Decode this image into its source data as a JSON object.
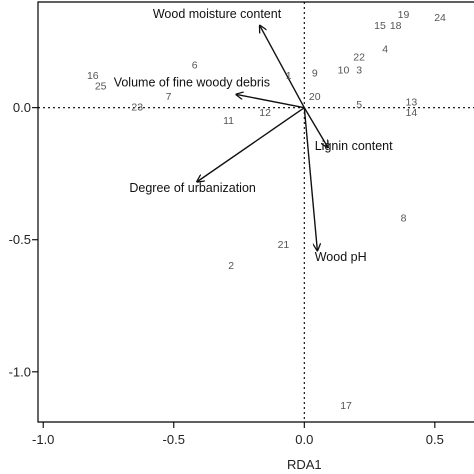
{
  "chart_data": {
    "type": "scatter",
    "subtype": "rda-biplot",
    "title": "",
    "xlabel": "RDA1",
    "ylabel": "",
    "xlim": [
      -1.02,
      0.65
    ],
    "ylim": [
      -1.19,
      0.4
    ],
    "x_ticks": [
      {
        "value": -1.0,
        "label": "-1.0"
      },
      {
        "value": -0.5,
        "label": "-0.5"
      },
      {
        "value": 0.0,
        "label": "0.0"
      },
      {
        "value": 0.5,
        "label": "0.5"
      }
    ],
    "y_ticks": [
      {
        "value": 0.0,
        "label": "0.0"
      },
      {
        "value": -0.5,
        "label": "-0.5"
      },
      {
        "value": -1.0,
        "label": "-1.0"
      }
    ],
    "reference_lines": {
      "x": 0,
      "y": 0,
      "style": "dotted"
    },
    "grid": false,
    "sites": [
      {
        "label": "1",
        "x": -0.06,
        "y": 0.12
      },
      {
        "label": "2",
        "x": -0.28,
        "y": -0.6
      },
      {
        "label": "3",
        "x": 0.21,
        "y": 0.14
      },
      {
        "label": "4",
        "x": 0.31,
        "y": 0.22
      },
      {
        "label": "5",
        "x": 0.21,
        "y": 0.01
      },
      {
        "label": "6",
        "x": -0.42,
        "y": 0.16
      },
      {
        "label": "7",
        "x": -0.52,
        "y": 0.04
      },
      {
        "label": "8",
        "x": 0.38,
        "y": -0.42
      },
      {
        "label": "9",
        "x": 0.04,
        "y": 0.13
      },
      {
        "label": "10",
        "x": 0.15,
        "y": 0.14
      },
      {
        "label": "11",
        "x": -0.29,
        "y": -0.05
      },
      {
        "label": "12",
        "x": -0.15,
        "y": -0.02
      },
      {
        "label": "13",
        "x": 0.41,
        "y": 0.02
      },
      {
        "label": "14",
        "x": 0.41,
        "y": -0.02
      },
      {
        "label": "15",
        "x": 0.29,
        "y": 0.31
      },
      {
        "label": "16",
        "x": -0.81,
        "y": 0.12
      },
      {
        "label": "17",
        "x": 0.16,
        "y": -1.13
      },
      {
        "label": "18",
        "x": 0.35,
        "y": 0.31
      },
      {
        "label": "19",
        "x": 0.38,
        "y": 0.35
      },
      {
        "label": "20",
        "x": 0.04,
        "y": 0.04
      },
      {
        "label": "21",
        "x": -0.08,
        "y": -0.52
      },
      {
        "label": "22",
        "x": 0.21,
        "y": 0.19
      },
      {
        "label": "23",
        "x": -0.64,
        "y": 0.0
      },
      {
        "label": "24",
        "x": 0.52,
        "y": 0.34
      },
      {
        "label": "25",
        "x": -0.78,
        "y": 0.08
      }
    ],
    "vectors": [
      {
        "name": "Wood moisture content",
        "x": -0.17,
        "y": 0.31,
        "label_x": -0.58,
        "label_y": 0.34
      },
      {
        "name": "Volume of fine woody debris",
        "x": -0.26,
        "y": 0.05,
        "label_x": -0.73,
        "label_y": 0.08
      },
      {
        "name": "Lignin content",
        "x": 0.09,
        "y": -0.15,
        "label_x": 0.04,
        "label_y": -0.16
      },
      {
        "name": "Degree of urbanization",
        "x": -0.41,
        "y": -0.28,
        "label_x": -0.67,
        "label_y": -0.32
      },
      {
        "name": "Wood pH",
        "x": 0.05,
        "y": -0.54,
        "label_x": 0.04,
        "label_y": -0.58
      }
    ]
  }
}
